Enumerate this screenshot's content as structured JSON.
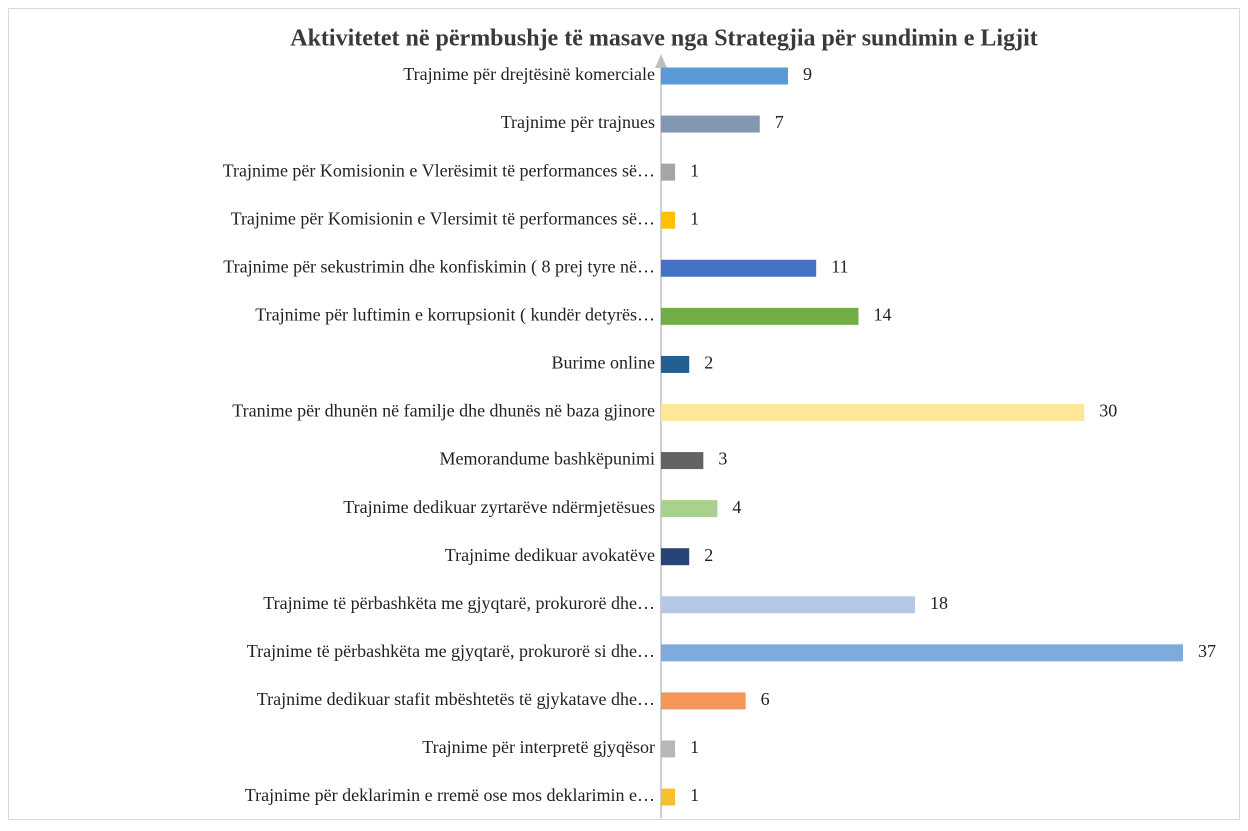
{
  "chart_data": {
    "type": "barh",
    "title": "Aktivitetet në përmbushje të masave nga Strategjia për sundimin e Ligjit",
    "categories": [
      "Trajnime për drejtësinë komerciale",
      "Trajnime për trajnues",
      "Trajnime për Komisionin e Vlerësimit të performances së…",
      "Trajnime për Komisionin e Vlersimit të performances së…",
      "Trajnime për sekustrimin dhe konfiskimin  ( 8 prej tyre në…",
      "Trajnime për luftimin e korrupsionit ( kundër detyrës…",
      "Burime online",
      "Tranime për dhunën në familje dhe dhunës në baza gjinore",
      "Memorandume bashkëpunimi",
      "Trajnime dedikuar zyrtarëve ndërmjetësues",
      "Trajnime dedikuar avokatëve",
      "Trajnime të përbashkëta me gjyqtarë, prokurorë dhe…",
      "Trajnime të përbashkëta me gjyqtarë, prokurorë si dhe…",
      "Trajnime dedikuar stafit mbështetës të gjykatave dhe…",
      "Trajnime për interpretë gjyqësor",
      "Trajnime për deklarimin e rremë ose mos deklarimin e…"
    ],
    "values": [
      9,
      7,
      1,
      1,
      11,
      14,
      2,
      30,
      3,
      4,
      2,
      18,
      37,
      6,
      1,
      1
    ],
    "colors": [
      "#5b9bd5",
      "#8497b0",
      "#a5a5a5",
      "#ffc000",
      "#4472c4",
      "#70ad47",
      "#255e91",
      "#ffe699",
      "#636363",
      "#a9d18e",
      "#264478",
      "#b4c7e7",
      "#7eaadc",
      "#f4965a",
      "#b7b7b7",
      "#f5c12c"
    ]
  }
}
